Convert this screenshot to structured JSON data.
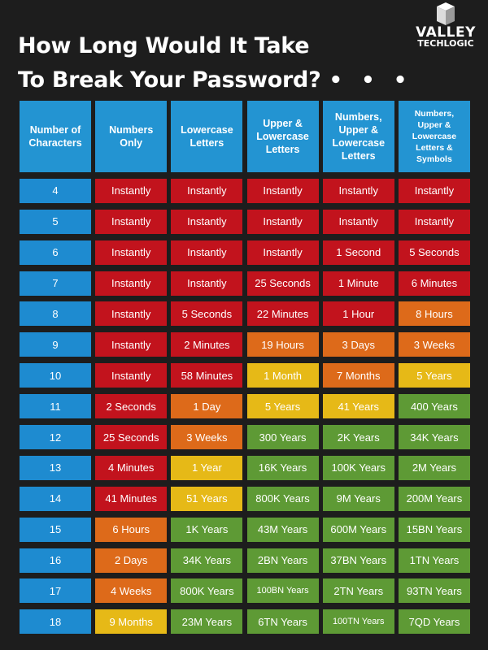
{
  "title_line1": "How Long Would It Take",
  "title_line2": "To Break Your Password?",
  "title_dots": "• • •",
  "logo": {
    "line1": "VALLEY",
    "line2": "TECHLOGIC"
  },
  "colors": {
    "background": "#1d1d1d",
    "header": "#2394d2",
    "character_count": "#1e8bd0",
    "red": "#c2131d",
    "orange": "#dd6a1a",
    "yellow": "#e6b917",
    "green": "#5e9a35"
  },
  "headers": [
    "Number of Characters",
    "Numbers Only",
    "Lowercase Letters",
    "Upper & Lowercase Letters",
    "Numbers, Upper & Lowercase Letters",
    "Numbers, Upper & Lowercase Letters & Symbols"
  ],
  "rows": [
    {
      "chars": "4",
      "values": [
        "Instantly",
        "Instantly",
        "Instantly",
        "Instantly",
        "Instantly"
      ],
      "colors": [
        "red",
        "red",
        "red",
        "red",
        "red"
      ]
    },
    {
      "chars": "5",
      "values": [
        "Instantly",
        "Instantly",
        "Instantly",
        "Instantly",
        "Instantly"
      ],
      "colors": [
        "red",
        "red",
        "red",
        "red",
        "red"
      ]
    },
    {
      "chars": "6",
      "values": [
        "Instantly",
        "Instantly",
        "Instantly",
        "1 Second",
        "5 Seconds"
      ],
      "colors": [
        "red",
        "red",
        "red",
        "red",
        "red"
      ]
    },
    {
      "chars": "7",
      "values": [
        "Instantly",
        "Instantly",
        "25 Seconds",
        "1 Minute",
        "6 Minutes"
      ],
      "colors": [
        "red",
        "red",
        "red",
        "red",
        "red"
      ]
    },
    {
      "chars": "8",
      "values": [
        "Instantly",
        "5 Seconds",
        "22 Minutes",
        "1 Hour",
        "8 Hours"
      ],
      "colors": [
        "red",
        "red",
        "red",
        "red",
        "orange"
      ]
    },
    {
      "chars": "9",
      "values": [
        "Instantly",
        "2 Minutes",
        "19 Hours",
        "3 Days",
        "3 Weeks"
      ],
      "colors": [
        "red",
        "red",
        "orange",
        "orange",
        "orange"
      ]
    },
    {
      "chars": "10",
      "values": [
        "Instantly",
        "58 Minutes",
        "1 Month",
        "7 Months",
        "5 Years"
      ],
      "colors": [
        "red",
        "red",
        "yellow",
        "orange",
        "yellow"
      ]
    },
    {
      "chars": "11",
      "values": [
        "2 Seconds",
        "1 Day",
        "5 Years",
        "41 Years",
        "400 Years"
      ],
      "colors": [
        "red",
        "orange",
        "yellow",
        "yellow",
        "green"
      ]
    },
    {
      "chars": "12",
      "values": [
        "25 Seconds",
        "3 Weeks",
        "300 Years",
        "2K Years",
        "34K Years"
      ],
      "colors": [
        "red",
        "orange",
        "green",
        "green",
        "green"
      ]
    },
    {
      "chars": "13",
      "values": [
        "4 Minutes",
        "1 Year",
        "16K Years",
        "100K Years",
        "2M Years"
      ],
      "colors": [
        "red",
        "yellow",
        "green",
        "green",
        "green"
      ]
    },
    {
      "chars": "14",
      "values": [
        "41 Minutes",
        "51 Years",
        "800K Years",
        "9M Years",
        "200M Years"
      ],
      "colors": [
        "red",
        "yellow",
        "green",
        "green",
        "green"
      ]
    },
    {
      "chars": "15",
      "values": [
        "6 Hours",
        "1K Years",
        "43M Years",
        "600M Years",
        "15BN Years"
      ],
      "colors": [
        "orange",
        "green",
        "green",
        "green",
        "green"
      ]
    },
    {
      "chars": "16",
      "values": [
        "2 Days",
        "34K Years",
        "2BN Years",
        "37BN Years",
        "1TN Years"
      ],
      "colors": [
        "orange",
        "green",
        "green",
        "green",
        "green"
      ]
    },
    {
      "chars": "17",
      "values": [
        "4 Weeks",
        "800K Years",
        "100BN Years",
        "2TN Years",
        "93TN Years"
      ],
      "colors": [
        "orange",
        "green",
        "green",
        "green",
        "green"
      ]
    },
    {
      "chars": "18",
      "values": [
        "9 Months",
        "23M Years",
        "6TN Years",
        "100TN Years",
        "7QD Years"
      ],
      "colors": [
        "yellow",
        "green",
        "green",
        "green",
        "green"
      ]
    }
  ]
}
